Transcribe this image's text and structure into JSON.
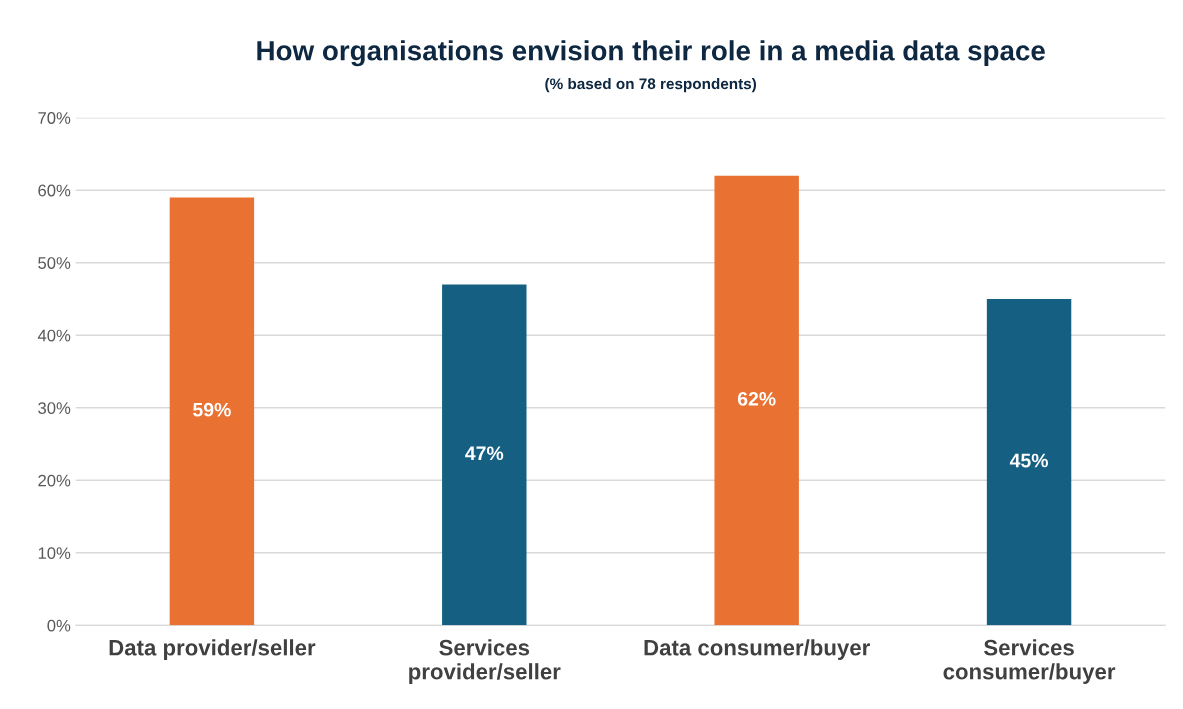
{
  "chart_data": {
    "type": "bar",
    "title": "How organisations envision their role in a media data space",
    "subtitle": "(% based on 78 respondents)",
    "categories": [
      "Data provider/seller",
      "Services provider/seller",
      "Data consumer/buyer",
      "Services consumer/buyer"
    ],
    "values": [
      59,
      47,
      62,
      45
    ],
    "colors": [
      "#e97132",
      "#156082",
      "#e97132",
      "#156082"
    ],
    "value_labels": [
      "59%",
      "47%",
      "62%",
      "45%"
    ],
    "ylim": [
      0,
      70
    ],
    "yticks": [
      {
        "value": 0,
        "label": "0%"
      },
      {
        "value": 10,
        "label": "10%"
      },
      {
        "value": 20,
        "label": "20%"
      },
      {
        "value": 30,
        "label": "30%"
      },
      {
        "value": 40,
        "label": "40%"
      },
      {
        "value": 50,
        "label": "50%"
      },
      {
        "value": 60,
        "label": "60%"
      },
      {
        "value": 70,
        "label": "70%"
      }
    ],
    "grid": "y",
    "legend": false
  }
}
